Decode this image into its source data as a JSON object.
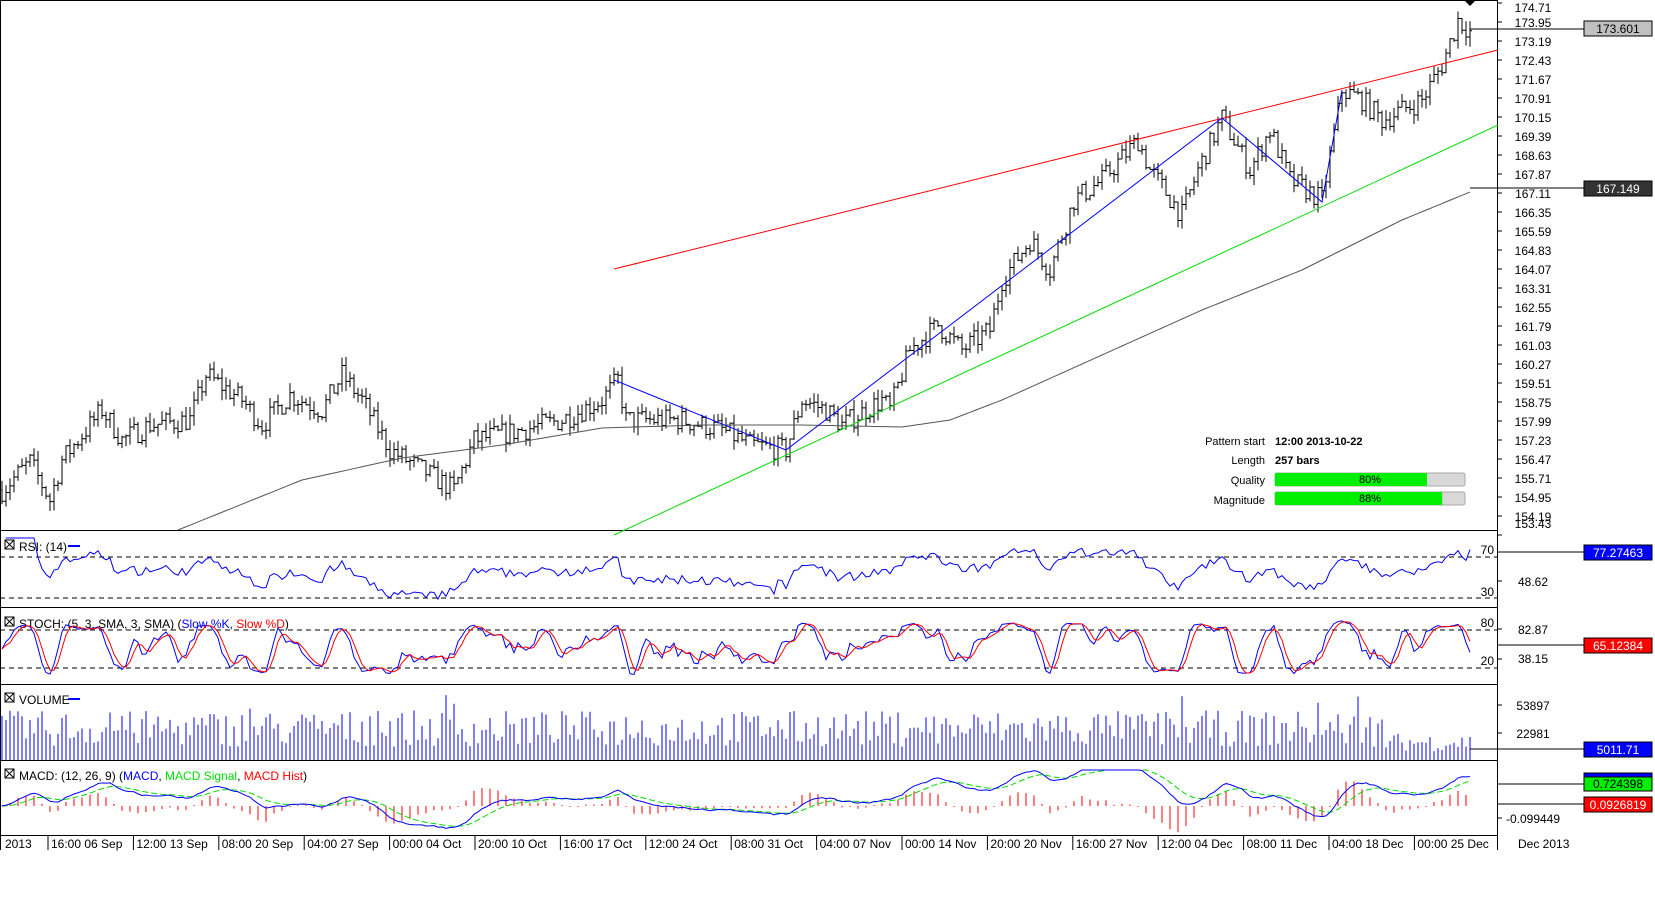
{
  "chart_data": {
    "type": "ohlc",
    "symbol_panel": {
      "last_price": "173.601",
      "sma_value": "167.149",
      "price_axis_ticks": [
        "174.71",
        "173.95",
        "173.19",
        "172.43",
        "171.67",
        "170.91",
        "170.15",
        "169.39",
        "168.63",
        "167.87",
        "167.11",
        "166.35",
        "165.59",
        "164.83",
        "164.07",
        "163.31",
        "162.55",
        "161.79",
        "161.03",
        "160.27",
        "159.51",
        "158.75",
        "157.99",
        "157.23",
        "156.47",
        "155.71",
        "154.95",
        "154.19",
        "153.43"
      ],
      "price_range": [
        153.43,
        174.71
      ],
      "close_waypoints": [
        [
          0,
          155.23
        ],
        [
          7,
          156.35
        ],
        [
          12,
          154.83
        ],
        [
          15,
          156.43
        ],
        [
          25,
          158.43
        ],
        [
          30,
          157.23
        ],
        [
          37,
          157.83
        ],
        [
          47,
          158.03
        ],
        [
          51,
          159.83
        ],
        [
          60,
          158.83
        ],
        [
          65,
          157.83
        ],
        [
          72,
          159.03
        ],
        [
          80,
          158.43
        ],
        [
          85,
          159.83
        ],
        [
          90,
          158.83
        ],
        [
          97,
          156.83
        ],
        [
          105,
          156.03
        ],
        [
          113,
          155.23
        ],
        [
          118,
          157.23
        ],
        [
          130,
          157.63
        ],
        [
          140,
          158.03
        ],
        [
          150,
          158.83
        ],
        [
          154,
          159.63
        ],
        [
          156,
          158.03
        ],
        [
          170,
          158.03
        ],
        [
          180,
          157.63
        ],
        [
          187,
          157.03
        ],
        [
          196,
          156.83
        ],
        [
          200,
          158.83
        ],
        [
          206,
          158.43
        ],
        [
          210,
          157.83
        ],
        [
          220,
          158.83
        ],
        [
          222,
          158.43
        ],
        [
          227,
          160.83
        ],
        [
          234,
          161.83
        ],
        [
          240,
          160.83
        ],
        [
          247,
          161.63
        ],
        [
          250,
          163.63
        ],
        [
          257,
          165.23
        ],
        [
          262,
          164.03
        ],
        [
          268,
          166.83
        ],
        [
          275,
          167.63
        ],
        [
          284,
          169.23
        ],
        [
          287,
          168.03
        ],
        [
          295,
          166.23
        ],
        [
          299,
          168.03
        ],
        [
          305,
          170.11
        ],
        [
          312,
          168.03
        ],
        [
          317,
          169.63
        ],
        [
          322,
          167.63
        ],
        [
          330,
          166.83
        ],
        [
          335,
          171.23
        ],
        [
          340,
          170.83
        ],
        [
          345,
          170.03
        ],
        [
          355,
          170.83
        ],
        [
          360,
          172.23
        ],
        [
          364,
          174.03
        ],
        [
          367,
          173.6
        ]
      ],
      "sma_waypoints": [
        [
          44,
          153.63
        ],
        [
          75,
          155.63
        ],
        [
          100,
          156.51
        ],
        [
          125,
          157.03
        ],
        [
          150,
          157.71
        ],
        [
          175,
          157.83
        ],
        [
          200,
          157.83
        ],
        [
          225,
          157.75
        ],
        [
          237,
          158.03
        ],
        [
          250,
          158.83
        ],
        [
          275,
          160.63
        ],
        [
          300,
          162.43
        ],
        [
          325,
          164.03
        ],
        [
          350,
          166.03
        ],
        [
          367,
          167.149
        ]
      ],
      "pattern_lines": {
        "resistance": [
          [
            153,
            164.07
          ],
          [
            374,
            172.83
          ]
        ],
        "support": [
          [
            153,
            153.43
          ],
          [
            374,
            169.83
          ]
        ],
        "zigzag": [
          [
            153,
            159.63
          ],
          [
            196,
            156.83
          ],
          [
            305,
            170.11
          ],
          [
            330,
            166.75
          ],
          [
            335,
            171.23
          ]
        ]
      },
      "colors": {
        "resistance": "#ff0000",
        "support": "#00dd00",
        "zigzag": "#0000ff",
        "sma": "#555555",
        "bars": "#000000"
      }
    },
    "pattern_info": {
      "start_label": "Pattern start",
      "start_value": "12:00 2013-10-22",
      "length_label": "Length",
      "length_value": "257 bars",
      "quality_label": "Quality",
      "quality_value": "80%",
      "quality": 0.8,
      "magnitude_label": "Magnitude",
      "magnitude_value": "88%",
      "magnitude": 0.88
    },
    "rsi": {
      "title": "RSI: (14)",
      "levels": [
        "70",
        "30"
      ],
      "axis_tick": "48.62",
      "last": "77.27463"
    },
    "stoch": {
      "title": "STOCH: (5, 3, SMA, 3, SMA) (",
      "k_label": "Slow %K",
      "sep": ", ",
      "d_label": "Slow %D",
      "close": ")",
      "levels": [
        "80",
        "20"
      ],
      "axis_ticks": [
        "82.87",
        "38.15"
      ],
      "last": "65.12384"
    },
    "volume": {
      "title": "VOLUME",
      "axis_ticks": [
        "53897",
        "22981"
      ],
      "last": "5011.71"
    },
    "macd": {
      "title": "MACD: (12, 26, 9) (",
      "macd_label": "MACD",
      "sep1": ", ",
      "signal_label": "MACD Signal",
      "sep2": ", ",
      "hist_label": "MACD Hist",
      "close": ")",
      "axis_tick": "-0.099449",
      "last_macd": "0.724398",
      "last_hist": "0.0926819"
    },
    "x_axis": {
      "labels": [
        "2013",
        "16:00 06 Sep",
        "12:00 13 Sep",
        "08:00 20 Sep",
        "04:00 27 Sep",
        "00:00 04 Oct",
        "20:00 10 Oct",
        "16:00 17 Oct",
        "12:00 24 Oct",
        "08:00 31 Oct",
        "04:00 07 Nov",
        "00:00 14 Nov",
        "20:00 20 Nov",
        "16:00 27 Nov",
        "12:00 04 Dec",
        "08:00 11 Dec",
        "04:00 18 Dec",
        "00:00 25 Dec"
      ],
      "right_label": "Dec 2013"
    }
  }
}
